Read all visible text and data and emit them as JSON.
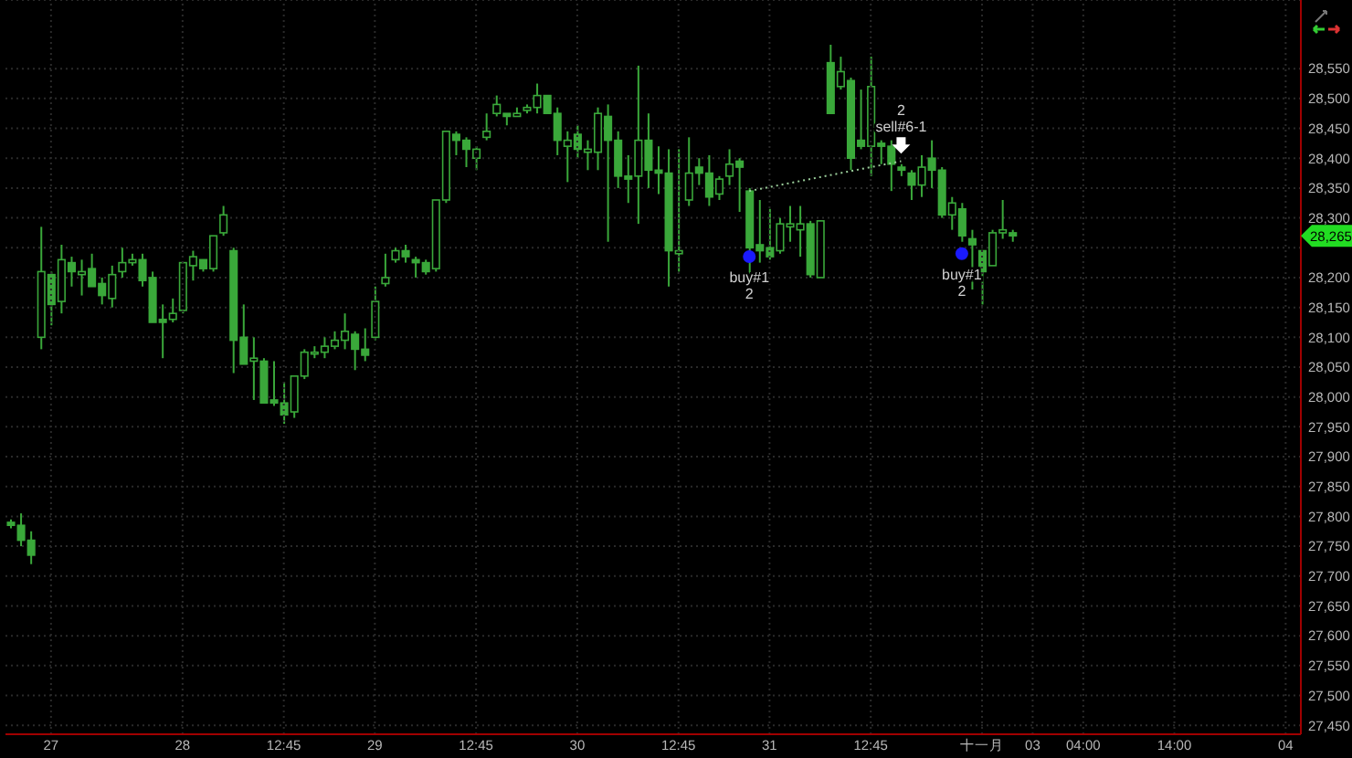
{
  "chart_data": {
    "type": "candlestick",
    "color": "#3aa83a",
    "grid": true,
    "categories": [
      null,
      null,
      null,
      null,
      "27",
      null,
      null,
      null,
      null,
      null,
      null,
      null,
      null,
      null,
      null,
      null,
      null,
      "28",
      null,
      null,
      null,
      null,
      null,
      null,
      null,
      null,
      null,
      "12:45",
      null,
      null,
      null,
      null,
      null,
      null,
      null,
      null,
      "29",
      null,
      null,
      null,
      null,
      null,
      null,
      null,
      null,
      null,
      "12:45",
      null,
      null,
      null,
      null,
      null,
      null,
      null,
      null,
      null,
      "30",
      null,
      null,
      null,
      null,
      null,
      null,
      null,
      null,
      null,
      "12:45",
      null,
      null,
      null,
      null,
      null,
      null,
      null,
      null,
      "31",
      null,
      null,
      null,
      null,
      null,
      null,
      null,
      null,
      null,
      "12:45",
      null,
      null,
      null,
      null,
      null,
      null,
      null,
      null,
      null,
      null,
      "十一月",
      null,
      null,
      null,
      null,
      "03",
      null,
      null,
      null,
      null,
      "04:00",
      null,
      null,
      null,
      null,
      null,
      null,
      null,
      null,
      "14:00",
      null,
      null,
      null,
      null,
      null,
      null,
      null,
      null,
      null,
      null,
      "04",
      null
    ],
    "ohlc": [
      [
        27790,
        27795,
        27780,
        27785
      ],
      [
        27785,
        27805,
        27750,
        27760
      ],
      [
        27760,
        27775,
        27720,
        27735
      ],
      [
        28100,
        28285,
        28080,
        28210
      ],
      [
        28205,
        28210,
        28120,
        28155
      ],
      [
        28160,
        28255,
        28140,
        28230
      ],
      [
        28225,
        28235,
        28185,
        28210
      ],
      [
        28205,
        28230,
        28170,
        28210
      ],
      [
        28215,
        28240,
        28185,
        28185
      ],
      [
        28190,
        28200,
        28155,
        28170
      ],
      [
        28165,
        28220,
        28150,
        28205
      ],
      [
        28210,
        28250,
        28200,
        28225
      ],
      [
        28225,
        28240,
        28220,
        28230
      ],
      [
        28230,
        28240,
        28185,
        28195
      ],
      [
        28200,
        28210,
        28125,
        28125
      ],
      [
        28130,
        28155,
        28065,
        28125
      ],
      [
        28130,
        28165,
        28125,
        28140
      ],
      [
        28145,
        28225,
        28140,
        28225
      ],
      [
        28220,
        28245,
        28195,
        28235
      ],
      [
        28230,
        28230,
        28210,
        28215
      ],
      [
        28215,
        28270,
        28210,
        28270
      ],
      [
        28275,
        28320,
        28270,
        28305
      ],
      [
        28245,
        28250,
        28040,
        28095
      ],
      [
        28100,
        28155,
        28055,
        28055
      ],
      [
        28060,
        28100,
        27995,
        28065
      ],
      [
        28060,
        28065,
        27990,
        27990
      ],
      [
        27995,
        28060,
        27985,
        27990
      ],
      [
        27990,
        28025,
        27955,
        27970
      ],
      [
        27975,
        28035,
        27965,
        28035
      ],
      [
        28035,
        28080,
        28030,
        28075
      ],
      [
        28075,
        28085,
        28065,
        28075
      ],
      [
        28075,
        28100,
        28065,
        28085
      ],
      [
        28085,
        28110,
        28080,
        28095
      ],
      [
        28095,
        28140,
        28080,
        28110
      ],
      [
        28105,
        28110,
        28045,
        28080
      ],
      [
        28080,
        28115,
        28060,
        28070
      ],
      [
        28100,
        28185,
        28095,
        28160
      ],
      [
        28190,
        28240,
        28185,
        28200
      ],
      [
        28230,
        28250,
        28225,
        28245
      ],
      [
        28245,
        28255,
        28225,
        28235
      ],
      [
        28230,
        28235,
        28200,
        28225
      ],
      [
        28225,
        28230,
        28205,
        28210
      ],
      [
        28215,
        28330,
        28210,
        28330
      ],
      [
        28330,
        28445,
        28325,
        28445
      ],
      [
        28440,
        28445,
        28405,
        28430
      ],
      [
        28430,
        28435,
        28385,
        28415
      ],
      [
        28400,
        28420,
        28380,
        28415
      ],
      [
        28435,
        28475,
        28430,
        28445
      ],
      [
        28475,
        28505,
        28470,
        28490
      ],
      [
        28475,
        28475,
        28455,
        28470
      ],
      [
        28470,
        28485,
        28470,
        28475
      ],
      [
        28480,
        28490,
        28475,
        28485
      ],
      [
        28485,
        28525,
        28475,
        28505
      ],
      [
        28505,
        28505,
        28475,
        28475
      ],
      [
        28475,
        28485,
        28405,
        28430
      ],
      [
        28420,
        28445,
        28360,
        28430
      ],
      [
        28440,
        28455,
        28400,
        28415
      ],
      [
        28410,
        28430,
        28380,
        28415
      ],
      [
        28410,
        28485,
        28380,
        28475
      ],
      [
        28470,
        28490,
        28260,
        28430
      ],
      [
        28430,
        28445,
        28350,
        28370
      ],
      [
        28370,
        28405,
        28325,
        28365
      ],
      [
        28370,
        28555,
        28290,
        28430
      ],
      [
        28430,
        28475,
        28350,
        28380
      ],
      [
        28380,
        28420,
        28340,
        28375
      ],
      [
        28375,
        28415,
        28185,
        28245
      ],
      [
        28240,
        28415,
        28210,
        28245
      ],
      [
        28330,
        28435,
        28320,
        28375
      ],
      [
        28385,
        28400,
        28355,
        28375
      ],
      [
        28375,
        28405,
        28320,
        28335
      ],
      [
        28340,
        28370,
        28330,
        28365
      ],
      [
        28370,
        28415,
        28355,
        28390
      ],
      [
        28395,
        28400,
        28310,
        28385
      ],
      [
        28345,
        28350,
        28200,
        28250
      ],
      [
        28255,
        28330,
        28225,
        28245
      ],
      [
        28250,
        28315,
        28230,
        28235
      ],
      [
        28245,
        28300,
        28240,
        28290
      ],
      [
        28285,
        28320,
        28260,
        28290
      ],
      [
        28280,
        28320,
        28235,
        28290
      ],
      [
        28290,
        28295,
        28200,
        28205
      ],
      [
        28200,
        28295,
        28200,
        28295
      ],
      [
        28560,
        28590,
        28475,
        28475
      ],
      [
        28520,
        28570,
        28515,
        28545
      ],
      [
        28530,
        28535,
        28380,
        28400
      ],
      [
        28430,
        28515,
        28415,
        28420
      ],
      [
        28420,
        28570,
        28370,
        28520
      ],
      [
        28425,
        28430,
        28390,
        28420
      ],
      [
        28420,
        28430,
        28345,
        28390
      ],
      [
        28385,
        28390,
        28370,
        28380
      ],
      [
        28375,
        28380,
        28330,
        28355
      ],
      [
        28355,
        28405,
        28335,
        28385
      ],
      [
        28400,
        28430,
        28350,
        28380
      ],
      [
        28380,
        28385,
        28300,
        28305
      ],
      [
        28305,
        28335,
        28280,
        28325
      ],
      [
        28315,
        28325,
        28260,
        28270
      ],
      [
        28265,
        28280,
        28180,
        28255
      ],
      [
        28245,
        28245,
        28155,
        28210
      ],
      [
        28220,
        28280,
        28220,
        28275
      ],
      [
        28275,
        28330,
        28265,
        28280
      ],
      [
        28275,
        28280,
        28260,
        28270
      ],
      null,
      null,
      null,
      null,
      null,
      null,
      null,
      null,
      null,
      null,
      null,
      null,
      null,
      null,
      null,
      null,
      null,
      null,
      null,
      null,
      null,
      null,
      null,
      null,
      null,
      null,
      null,
      null
    ],
    "ylim": [
      27435,
      28665
    ],
    "yticks": [
      {
        "value": 27450,
        "label": "27,450"
      },
      {
        "value": 27500,
        "label": "27,500"
      },
      {
        "value": 27550,
        "label": "27,550"
      },
      {
        "value": 27600,
        "label": "27,600"
      },
      {
        "value": 27650,
        "label": "27,650"
      },
      {
        "value": 27700,
        "label": "27,700"
      },
      {
        "value": 27750,
        "label": "27,750"
      },
      {
        "value": 27800,
        "label": "27,800"
      },
      {
        "value": 27850,
        "label": "27,850"
      },
      {
        "value": 27900,
        "label": "27,900"
      },
      {
        "value": 27950,
        "label": "27,950"
      },
      {
        "value": 28000,
        "label": "28,000"
      },
      {
        "value": 28050,
        "label": "28,050"
      },
      {
        "value": 28100,
        "label": "28,100"
      },
      {
        "value": 28150,
        "label": "28,150"
      },
      {
        "value": 28200,
        "label": "28,200"
      },
      {
        "value": 28250,
        "label": null
      },
      {
        "value": 28300,
        "label": "28,300"
      },
      {
        "value": 28350,
        "label": "28,350"
      },
      {
        "value": 28400,
        "label": "28,400"
      },
      {
        "value": 28450,
        "label": "28,450"
      },
      {
        "value": 28500,
        "label": "28,500"
      },
      {
        "value": 28550,
        "label": "28,550"
      }
    ],
    "annotations": [
      "28,265"
    ],
    "series": [
      {
        "type": "line",
        "color": "#9acd9a",
        "line_style": "dotted",
        "marker": "none",
        "values": [
          null,
          null,
          null,
          null,
          null,
          null,
          null,
          null,
          null,
          null,
          null,
          null,
          null,
          null,
          null,
          null,
          null,
          null,
          null,
          null,
          null,
          null,
          null,
          null,
          null,
          null,
          null,
          null,
          null,
          null,
          null,
          null,
          null,
          null,
          null,
          null,
          null,
          null,
          null,
          null,
          null,
          null,
          null,
          null,
          null,
          null,
          null,
          null,
          null,
          null,
          null,
          null,
          null,
          null,
          null,
          null,
          null,
          null,
          null,
          null,
          null,
          null,
          null,
          null,
          null,
          null,
          null,
          null,
          null,
          null,
          null,
          null,
          null,
          28345,
          null,
          null,
          null,
          null,
          null,
          null,
          null,
          null,
          null,
          null,
          null,
          null,
          null,
          null,
          28395,
          null,
          null,
          null,
          null,
          null,
          null,
          null,
          null,
          null,
          null,
          null,
          null,
          null,
          null,
          null,
          null,
          null,
          null,
          null,
          null,
          null,
          null,
          null,
          null,
          null,
          null,
          null,
          null,
          null,
          null,
          null,
          null,
          null,
          null,
          null,
          null,
          null,
          null,
          null
        ]
      },
      {
        "type": "scatter",
        "color": "#1a1aff",
        "marker": "circle",
        "values": [
          null,
          null,
          null,
          null,
          null,
          null,
          null,
          null,
          null,
          null,
          null,
          null,
          null,
          null,
          null,
          null,
          null,
          null,
          null,
          null,
          null,
          null,
          null,
          null,
          null,
          null,
          null,
          null,
          null,
          null,
          null,
          null,
          null,
          null,
          null,
          null,
          null,
          null,
          null,
          null,
          null,
          null,
          null,
          null,
          null,
          null,
          null,
          null,
          null,
          null,
          null,
          null,
          null,
          null,
          null,
          null,
          null,
          null,
          null,
          null,
          null,
          null,
          null,
          null,
          null,
          null,
          null,
          null,
          null,
          null,
          null,
          null,
          null,
          28235,
          null,
          null,
          null,
          null,
          null,
          null,
          null,
          null,
          null,
          null,
          null,
          null,
          null,
          null,
          null,
          null,
          null,
          null,
          null,
          null,
          28240,
          null,
          null,
          null,
          null,
          null,
          null,
          null,
          null,
          null,
          null,
          null,
          null,
          null,
          null,
          null,
          null,
          null,
          null,
          null,
          null,
          null,
          null,
          null,
          null,
          null,
          null,
          null,
          null,
          null,
          null,
          null,
          null,
          null
        ],
        "value_labels": [
          null,
          null,
          null,
          null,
          null,
          null,
          null,
          null,
          null,
          null,
          null,
          null,
          null,
          null,
          null,
          null,
          null,
          null,
          null,
          null,
          null,
          null,
          null,
          null,
          null,
          null,
          null,
          null,
          null,
          null,
          null,
          null,
          null,
          null,
          null,
          null,
          null,
          null,
          null,
          null,
          null,
          null,
          null,
          null,
          null,
          null,
          null,
          null,
          null,
          null,
          null,
          null,
          null,
          null,
          null,
          null,
          null,
          null,
          null,
          null,
          null,
          null,
          null,
          null,
          null,
          null,
          null,
          null,
          null,
          null,
          null,
          null,
          null,
          "buy#1\n2",
          null,
          null,
          null,
          null,
          null,
          null,
          null,
          null,
          null,
          null,
          null,
          null,
          null,
          null,
          null,
          null,
          null,
          null,
          null,
          null,
          "buy#1\n2",
          null,
          null,
          null,
          null,
          null,
          null,
          null,
          null,
          null,
          null,
          null,
          null,
          null,
          null,
          null,
          null,
          null,
          null,
          null,
          null,
          null,
          null,
          null,
          null,
          null,
          null,
          null,
          null,
          null,
          null,
          null,
          null,
          null
        ]
      },
      {
        "type": "scatter",
        "color": "#ffffff",
        "marker": "triangle",
        "values": [
          null,
          null,
          null,
          null,
          null,
          null,
          null,
          null,
          null,
          null,
          null,
          null,
          null,
          null,
          null,
          null,
          null,
          null,
          null,
          null,
          null,
          null,
          null,
          null,
          null,
          null,
          null,
          null,
          null,
          null,
          null,
          null,
          null,
          null,
          null,
          null,
          null,
          null,
          null,
          null,
          null,
          null,
          null,
          null,
          null,
          null,
          null,
          null,
          null,
          null,
          null,
          null,
          null,
          null,
          null,
          null,
          null,
          null,
          null,
          null,
          null,
          null,
          null,
          null,
          null,
          null,
          null,
          null,
          null,
          null,
          null,
          null,
          null,
          null,
          null,
          null,
          null,
          null,
          null,
          null,
          null,
          null,
          null,
          null,
          null,
          null,
          null,
          null,
          28420,
          null,
          null,
          null,
          null,
          null,
          null,
          null,
          null,
          null,
          null,
          null,
          null,
          null,
          null,
          null,
          null,
          null,
          null,
          null,
          null,
          null,
          null,
          null,
          null,
          null,
          null,
          null,
          null,
          null,
          null,
          null,
          null,
          null,
          null,
          null,
          null,
          null,
          null,
          null
        ],
        "value_labels": [
          null,
          null,
          null,
          null,
          null,
          null,
          null,
          null,
          null,
          null,
          null,
          null,
          null,
          null,
          null,
          null,
          null,
          null,
          null,
          null,
          null,
          null,
          null,
          null,
          null,
          null,
          null,
          null,
          null,
          null,
          null,
          null,
          null,
          null,
          null,
          null,
          null,
          null,
          null,
          null,
          null,
          null,
          null,
          null,
          null,
          null,
          null,
          null,
          null,
          null,
          null,
          null,
          null,
          null,
          null,
          null,
          null,
          null,
          null,
          null,
          null,
          null,
          null,
          null,
          null,
          null,
          null,
          null,
          null,
          null,
          null,
          null,
          null,
          null,
          null,
          null,
          null,
          null,
          null,
          null,
          null,
          null,
          null,
          null,
          null,
          null,
          null,
          null,
          "2\nsell#6-1",
          null,
          null,
          null,
          null,
          null,
          null,
          null,
          null,
          null,
          null,
          null,
          null,
          null,
          null,
          null,
          null,
          null,
          null,
          null,
          null,
          null,
          null,
          null,
          null,
          null,
          null,
          null,
          null,
          null,
          null,
          null,
          null,
          null,
          null,
          null,
          null,
          null,
          null,
          null
        ]
      }
    ]
  }
}
